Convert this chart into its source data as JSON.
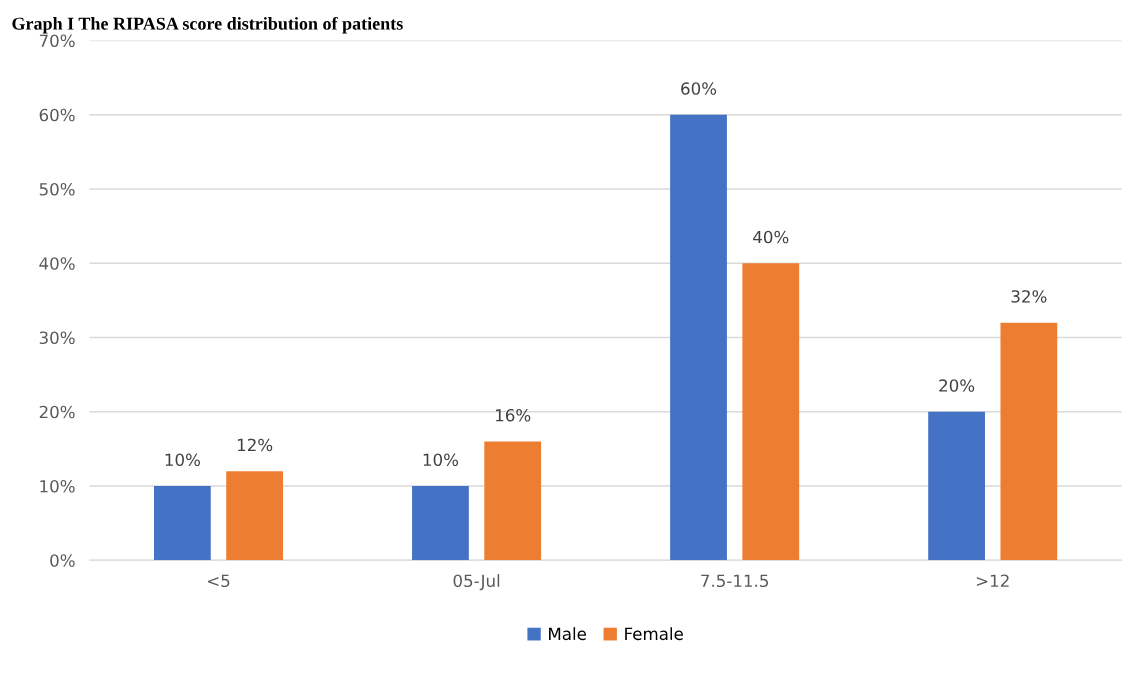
{
  "chart_data": {
    "type": "bar",
    "title": "Graph I The RIPASA score distribution of patients",
    "categories": [
      "<5",
      "05-Jul",
      "7.5-11.5",
      ">12"
    ],
    "series": [
      {
        "name": "Male",
        "color": "#4472c4",
        "values": [
          10,
          10,
          60,
          20
        ],
        "value_labels": [
          "10%",
          "10%",
          "60%",
          "20%"
        ]
      },
      {
        "name": "Female",
        "color": "#ed7d31",
        "values": [
          12,
          16,
          40,
          32
        ],
        "value_labels": [
          "12%",
          "16%",
          "40%",
          "32%"
        ]
      }
    ],
    "ylim": [
      0,
      70
    ],
    "yticks": [
      {
        "value": 0,
        "label": "0%"
      },
      {
        "value": 10,
        "label": "10%"
      },
      {
        "value": 20,
        "label": "20%"
      },
      {
        "value": 30,
        "label": "30%"
      },
      {
        "value": 40,
        "label": "40%"
      },
      {
        "value": 50,
        "label": "50%"
      },
      {
        "value": 60,
        "label": "60%"
      },
      {
        "value": 70,
        "label": "70%"
      }
    ],
    "grid": "y",
    "legend": "bottom"
  }
}
